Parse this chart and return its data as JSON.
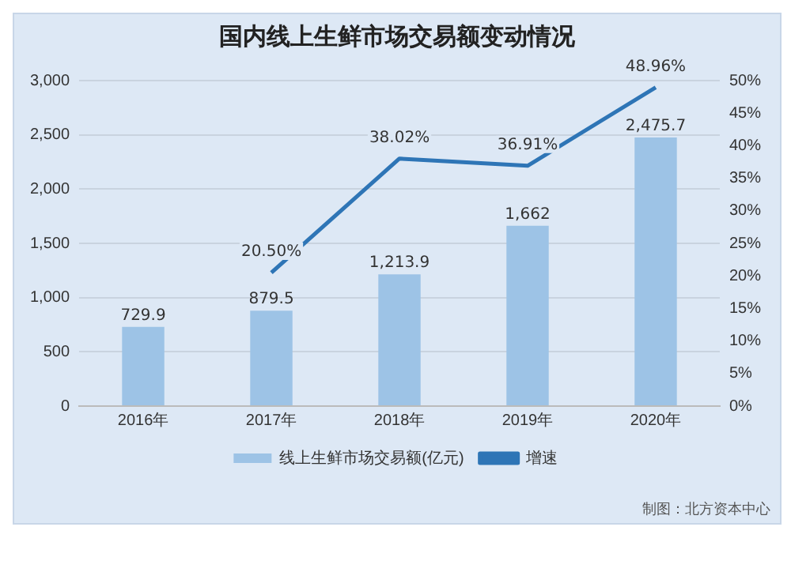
{
  "chart_data": {
    "type": "bar",
    "title": "国内线上生鲜市场交易额变动情况",
    "categories": [
      "2016年",
      "2017年",
      "2018年",
      "2019年",
      "2020年"
    ],
    "series": [
      {
        "name": "线上生鲜市场交易额(亿元)",
        "color": "#9dc3e6",
        "values": [
          729.9,
          879.5,
          1213.9,
          1662,
          2475.7
        ],
        "value_labels": [
          "729.9",
          "879.5",
          "1,213.9",
          "1,662",
          "2,475.7"
        ]
      },
      {
        "name": "增速",
        "type": "line",
        "axis": "y2",
        "color": "#2e75b6",
        "values": [
          null,
          20.5,
          38.02,
          36.91,
          48.96
        ],
        "value_labels": [
          null,
          "20.50%",
          "38.02%",
          "36.91%",
          "48.96%"
        ]
      }
    ],
    "ylim": [
      0,
      3000
    ],
    "yticks": [
      {
        "value": 0,
        "label": "0"
      },
      {
        "value": 500,
        "label": "500"
      },
      {
        "value": 1000,
        "label": "1,000"
      },
      {
        "value": 1500,
        "label": "1,500"
      },
      {
        "value": 2000,
        "label": "2,000"
      },
      {
        "value": 2500,
        "label": "2,500"
      },
      {
        "value": 3000,
        "label": "3,000"
      }
    ],
    "y2lim": [
      0,
      50
    ],
    "y2ticks": [
      {
        "value": 0,
        "label": "0%"
      },
      {
        "value": 5,
        "label": "5%"
      },
      {
        "value": 10,
        "label": "10%"
      },
      {
        "value": 15,
        "label": "15%"
      },
      {
        "value": 20,
        "label": "20%"
      },
      {
        "value": 25,
        "label": "25%"
      },
      {
        "value": 30,
        "label": "30%"
      },
      {
        "value": 35,
        "label": "35%"
      },
      {
        "value": 40,
        "label": "40%"
      },
      {
        "value": 45,
        "label": "45%"
      },
      {
        "value": 50,
        "label": "50%"
      }
    ],
    "grid": "y",
    "legend": "bottom",
    "marker": "none",
    "line_style": "solid",
    "annotations": [
      "制图：北方资本中心"
    ]
  }
}
